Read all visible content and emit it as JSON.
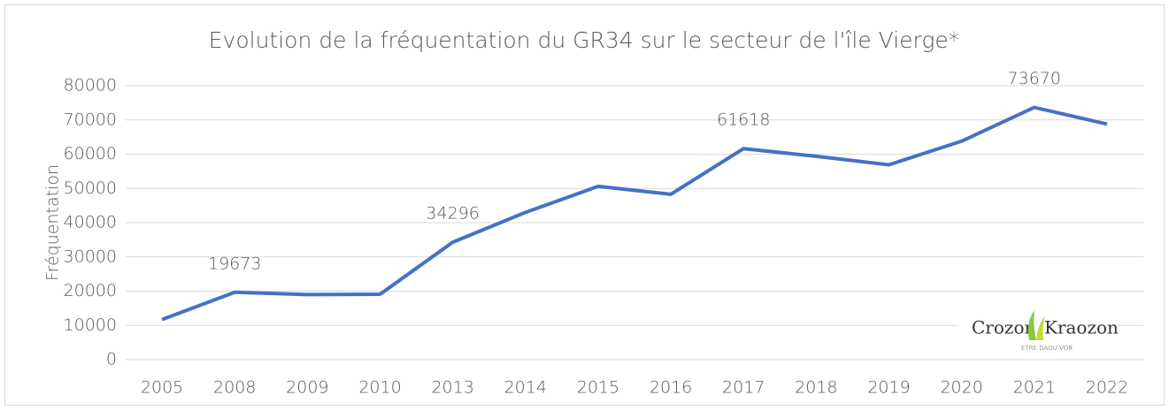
{
  "chart_data": {
    "type": "line",
    "title": "Evolution de la fréquentation du GR34 sur le secteur de l'île Vierge*",
    "y_label": "Fréquentation",
    "categories": [
      "2005",
      "2008",
      "2009",
      "2010",
      "2013",
      "2014",
      "2015",
      "2016",
      "2017",
      "2018",
      "2019",
      "2020",
      "2021",
      "2022"
    ],
    "series": [
      {
        "name": "Fréquentation",
        "color": "#4472c4",
        "values": [
          11700,
          19673,
          19000,
          19100,
          34296,
          43000,
          50600,
          48300,
          61618,
          59400,
          56900,
          63800,
          73670,
          68800
        ],
        "value_labels": [
          null,
          "19673",
          null,
          null,
          "34296",
          null,
          null,
          null,
          "61618",
          null,
          null,
          null,
          "73670",
          null
        ]
      }
    ],
    "ylim": [
      0,
      80000
    ],
    "yticks": [
      0,
      10000,
      20000,
      30000,
      40000,
      50000,
      60000,
      70000,
      80000
    ],
    "grid": true,
    "logo": {
      "left": "Crozon",
      "right": "Kraozon",
      "tagline": "ETRE DAOU VOR"
    }
  }
}
